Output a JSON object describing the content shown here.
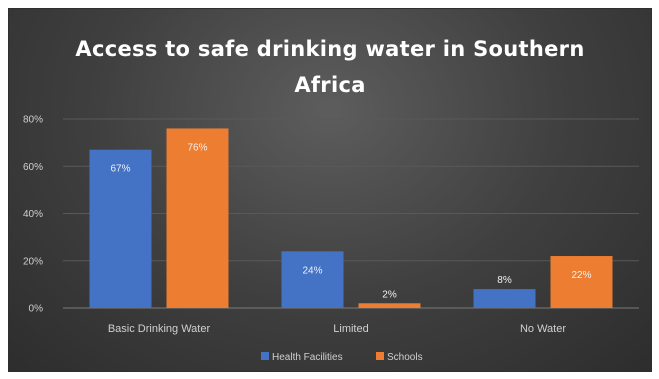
{
  "chart_data": {
    "type": "bar",
    "title": "Access to safe drinking water  in Southern Africa",
    "xlabel": "",
    "ylabel": "",
    "ylim": [
      0,
      80
    ],
    "y_ticks": [
      0,
      20,
      40,
      60,
      80
    ],
    "y_tick_labels": [
      "0%",
      "20%",
      "40%",
      "60%",
      "80%"
    ],
    "categories": [
      "Basic Drinking Water",
      "Limited",
      "No Water"
    ],
    "series": [
      {
        "name": "Health Facilities",
        "values": [
          67,
          24,
          8
        ],
        "labels": [
          "67%",
          "24%",
          "8%"
        ],
        "color": "#4472c4"
      },
      {
        "name": "Schools",
        "values": [
          76,
          2,
          22
        ],
        "labels": [
          "76%",
          "2%",
          "22%"
        ],
        "color": "#ed7d31"
      }
    ],
    "grid": true,
    "legend": "bottom-center",
    "background": "#3f3f3f",
    "text_color": "#d0d0d0",
    "grid_color": "#595959"
  }
}
